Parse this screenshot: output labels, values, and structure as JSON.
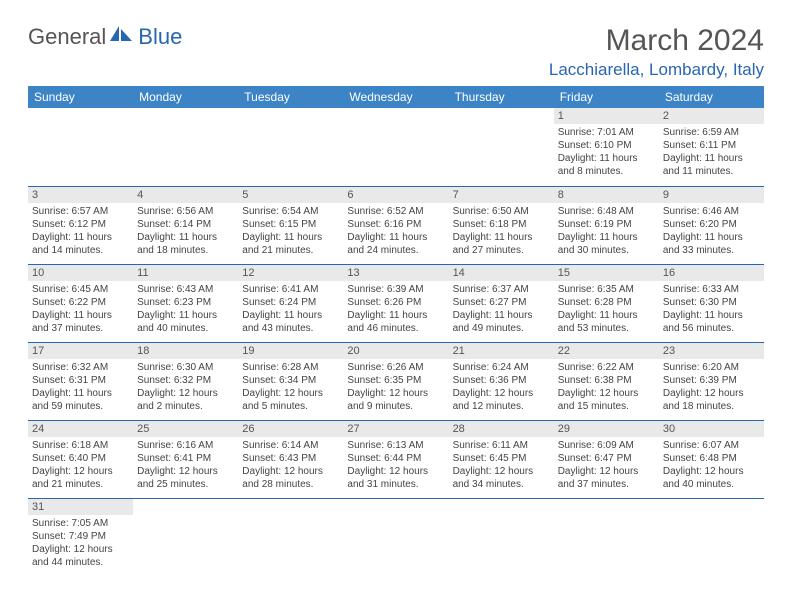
{
  "brand": {
    "general": "General",
    "blue": "Blue"
  },
  "title": "March 2024",
  "location": "Lacchiarella, Lombardy, Italy",
  "colors": {
    "header_bg": "#3c84c6",
    "header_text": "#ffffff",
    "accent": "#2966b0",
    "daynum_bg": "#e9e9e9",
    "text": "#444444"
  },
  "weekdays": [
    "Sunday",
    "Monday",
    "Tuesday",
    "Wednesday",
    "Thursday",
    "Friday",
    "Saturday"
  ],
  "weeks": [
    [
      {
        "empty": true
      },
      {
        "empty": true
      },
      {
        "empty": true
      },
      {
        "empty": true
      },
      {
        "empty": true
      },
      {
        "num": "1",
        "sunrise": "Sunrise: 7:01 AM",
        "sunset": "Sunset: 6:10 PM",
        "daylight": "Daylight: 11 hours and 8 minutes."
      },
      {
        "num": "2",
        "sunrise": "Sunrise: 6:59 AM",
        "sunset": "Sunset: 6:11 PM",
        "daylight": "Daylight: 11 hours and 11 minutes."
      }
    ],
    [
      {
        "num": "3",
        "sunrise": "Sunrise: 6:57 AM",
        "sunset": "Sunset: 6:12 PM",
        "daylight": "Daylight: 11 hours and 14 minutes."
      },
      {
        "num": "4",
        "sunrise": "Sunrise: 6:56 AM",
        "sunset": "Sunset: 6:14 PM",
        "daylight": "Daylight: 11 hours and 18 minutes."
      },
      {
        "num": "5",
        "sunrise": "Sunrise: 6:54 AM",
        "sunset": "Sunset: 6:15 PM",
        "daylight": "Daylight: 11 hours and 21 minutes."
      },
      {
        "num": "6",
        "sunrise": "Sunrise: 6:52 AM",
        "sunset": "Sunset: 6:16 PM",
        "daylight": "Daylight: 11 hours and 24 minutes."
      },
      {
        "num": "7",
        "sunrise": "Sunrise: 6:50 AM",
        "sunset": "Sunset: 6:18 PM",
        "daylight": "Daylight: 11 hours and 27 minutes."
      },
      {
        "num": "8",
        "sunrise": "Sunrise: 6:48 AM",
        "sunset": "Sunset: 6:19 PM",
        "daylight": "Daylight: 11 hours and 30 minutes."
      },
      {
        "num": "9",
        "sunrise": "Sunrise: 6:46 AM",
        "sunset": "Sunset: 6:20 PM",
        "daylight": "Daylight: 11 hours and 33 minutes."
      }
    ],
    [
      {
        "num": "10",
        "sunrise": "Sunrise: 6:45 AM",
        "sunset": "Sunset: 6:22 PM",
        "daylight": "Daylight: 11 hours and 37 minutes."
      },
      {
        "num": "11",
        "sunrise": "Sunrise: 6:43 AM",
        "sunset": "Sunset: 6:23 PM",
        "daylight": "Daylight: 11 hours and 40 minutes."
      },
      {
        "num": "12",
        "sunrise": "Sunrise: 6:41 AM",
        "sunset": "Sunset: 6:24 PM",
        "daylight": "Daylight: 11 hours and 43 minutes."
      },
      {
        "num": "13",
        "sunrise": "Sunrise: 6:39 AM",
        "sunset": "Sunset: 6:26 PM",
        "daylight": "Daylight: 11 hours and 46 minutes."
      },
      {
        "num": "14",
        "sunrise": "Sunrise: 6:37 AM",
        "sunset": "Sunset: 6:27 PM",
        "daylight": "Daylight: 11 hours and 49 minutes."
      },
      {
        "num": "15",
        "sunrise": "Sunrise: 6:35 AM",
        "sunset": "Sunset: 6:28 PM",
        "daylight": "Daylight: 11 hours and 53 minutes."
      },
      {
        "num": "16",
        "sunrise": "Sunrise: 6:33 AM",
        "sunset": "Sunset: 6:30 PM",
        "daylight": "Daylight: 11 hours and 56 minutes."
      }
    ],
    [
      {
        "num": "17",
        "sunrise": "Sunrise: 6:32 AM",
        "sunset": "Sunset: 6:31 PM",
        "daylight": "Daylight: 11 hours and 59 minutes."
      },
      {
        "num": "18",
        "sunrise": "Sunrise: 6:30 AM",
        "sunset": "Sunset: 6:32 PM",
        "daylight": "Daylight: 12 hours and 2 minutes."
      },
      {
        "num": "19",
        "sunrise": "Sunrise: 6:28 AM",
        "sunset": "Sunset: 6:34 PM",
        "daylight": "Daylight: 12 hours and 5 minutes."
      },
      {
        "num": "20",
        "sunrise": "Sunrise: 6:26 AM",
        "sunset": "Sunset: 6:35 PM",
        "daylight": "Daylight: 12 hours and 9 minutes."
      },
      {
        "num": "21",
        "sunrise": "Sunrise: 6:24 AM",
        "sunset": "Sunset: 6:36 PM",
        "daylight": "Daylight: 12 hours and 12 minutes."
      },
      {
        "num": "22",
        "sunrise": "Sunrise: 6:22 AM",
        "sunset": "Sunset: 6:38 PM",
        "daylight": "Daylight: 12 hours and 15 minutes."
      },
      {
        "num": "23",
        "sunrise": "Sunrise: 6:20 AM",
        "sunset": "Sunset: 6:39 PM",
        "daylight": "Daylight: 12 hours and 18 minutes."
      }
    ],
    [
      {
        "num": "24",
        "sunrise": "Sunrise: 6:18 AM",
        "sunset": "Sunset: 6:40 PM",
        "daylight": "Daylight: 12 hours and 21 minutes."
      },
      {
        "num": "25",
        "sunrise": "Sunrise: 6:16 AM",
        "sunset": "Sunset: 6:41 PM",
        "daylight": "Daylight: 12 hours and 25 minutes."
      },
      {
        "num": "26",
        "sunrise": "Sunrise: 6:14 AM",
        "sunset": "Sunset: 6:43 PM",
        "daylight": "Daylight: 12 hours and 28 minutes."
      },
      {
        "num": "27",
        "sunrise": "Sunrise: 6:13 AM",
        "sunset": "Sunset: 6:44 PM",
        "daylight": "Daylight: 12 hours and 31 minutes."
      },
      {
        "num": "28",
        "sunrise": "Sunrise: 6:11 AM",
        "sunset": "Sunset: 6:45 PM",
        "daylight": "Daylight: 12 hours and 34 minutes."
      },
      {
        "num": "29",
        "sunrise": "Sunrise: 6:09 AM",
        "sunset": "Sunset: 6:47 PM",
        "daylight": "Daylight: 12 hours and 37 minutes."
      },
      {
        "num": "30",
        "sunrise": "Sunrise: 6:07 AM",
        "sunset": "Sunset: 6:48 PM",
        "daylight": "Daylight: 12 hours and 40 minutes."
      }
    ],
    [
      {
        "num": "31",
        "sunrise": "Sunrise: 7:05 AM",
        "sunset": "Sunset: 7:49 PM",
        "daylight": "Daylight: 12 hours and 44 minutes."
      },
      {
        "empty": true
      },
      {
        "empty": true
      },
      {
        "empty": true
      },
      {
        "empty": true
      },
      {
        "empty": true
      },
      {
        "empty": true
      }
    ]
  ]
}
